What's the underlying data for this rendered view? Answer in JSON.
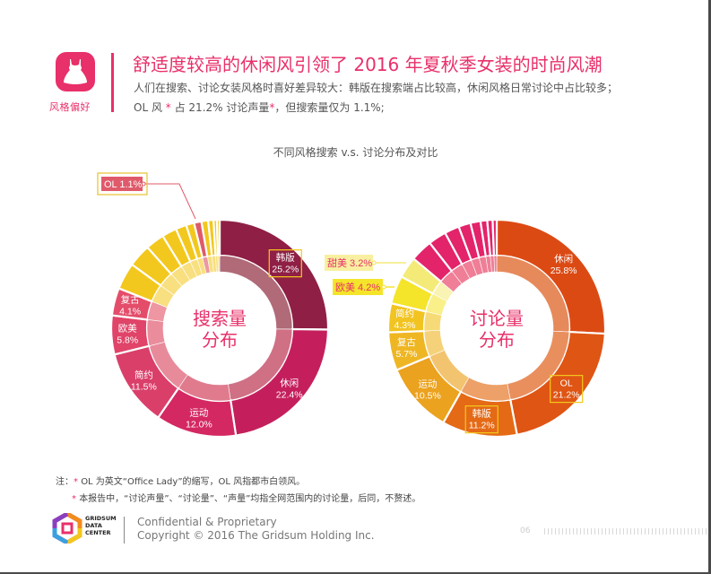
{
  "header": {
    "badge_label": "风格偏好",
    "badge_icon": "dress-icon",
    "title": "舒适度较高的休闲风引领了 2016 年夏秋季女装的时尚风潮",
    "subtitle_line1": "人们在搜索、讨论女装风格时喜好差异较大：韩版在搜索端占比较高，休闲风格日常讨论中占比较多；",
    "subtitle_line2_a": "OL 风",
    "subtitle_line2_b": "占 21.2% 讨论声量",
    "subtitle_line2_c": "，但搜索量仅为 1.1%;",
    "star": "*"
  },
  "chart_data": [
    {
      "type": "pie",
      "title": "不同风格搜索 v.s. 讨论分布及对比",
      "center_label": [
        "搜索量",
        "分布"
      ],
      "unit": "%",
      "slices": [
        {
          "label": "韩版",
          "value": 25.2,
          "color": "#8f1f44",
          "inner": "#b06a78",
          "show_label": true,
          "boxed": true
        },
        {
          "label": "休闲",
          "value": 22.4,
          "color": "#c41f5c",
          "inner": "#d07085",
          "show_label": true
        },
        {
          "label": "运动",
          "value": 12.0,
          "color": "#d42862",
          "inner": "#e07b8e",
          "show_label": true
        },
        {
          "label": "简约",
          "value": 11.5,
          "color": "#da3f6a",
          "inner": "#e78b9b",
          "show_label": true
        },
        {
          "label": "欧美",
          "value": 5.8,
          "color": "#e04468",
          "inner": "#ea8c9c",
          "show_label": true
        },
        {
          "label": "复古",
          "value": 4.1,
          "color": "#e44d6a",
          "inner": "#ee96a2",
          "show_label": true
        },
        {
          "label": "",
          "value": 4.0,
          "color": "#f2c81e",
          "inner": "#f8df80"
        },
        {
          "label": "",
          "value": 3.4,
          "color": "#f2c81e",
          "inner": "#f8df80"
        },
        {
          "label": "",
          "value": 2.8,
          "color": "#f2c81e",
          "inner": "#f8df80"
        },
        {
          "label": "",
          "value": 2.2,
          "color": "#f2c81e",
          "inner": "#f8df80"
        },
        {
          "label": "",
          "value": 1.6,
          "color": "#f2c81e",
          "inner": "#f8df80"
        },
        {
          "label": "",
          "value": 1.2,
          "color": "#f2c81e",
          "inner": "#f8df80"
        },
        {
          "label": "OL",
          "value": 1.1,
          "color": "#df5a6a",
          "inner": "#eb98a2",
          "callout": true
        },
        {
          "label": "",
          "value": 1.0,
          "color": "#f2c81e",
          "inner": "#f8df80"
        },
        {
          "label": "",
          "value": 0.8,
          "color": "#f2c81e",
          "inner": "#f8df80"
        },
        {
          "label": "",
          "value": 0.5,
          "color": "#f2c81e",
          "inner": "#f8df80"
        },
        {
          "label": "",
          "value": 0.4,
          "color": "#f2c81e",
          "inner": "#f8df80"
        }
      ]
    },
    {
      "type": "pie",
      "title": "不同风格搜索 v.s. 讨论分布及对比",
      "center_label": [
        "讨论量",
        "分布"
      ],
      "unit": "%",
      "slices": [
        {
          "label": "休闲",
          "value": 25.8,
          "color": "#dc4a14",
          "inner": "#e68a5c",
          "show_label": true
        },
        {
          "label": "OL",
          "value": 21.2,
          "color": "#df5514",
          "inner": "#e98f5e",
          "show_label": true,
          "boxed": true
        },
        {
          "label": "韩版",
          "value": 11.2,
          "color": "#e46a16",
          "inner": "#eda068",
          "show_label": true,
          "boxed": true
        },
        {
          "label": "运动",
          "value": 10.5,
          "color": "#eba21e",
          "inner": "#f3c470",
          "show_label": true
        },
        {
          "label": "复古",
          "value": 5.7,
          "color": "#efb624",
          "inner": "#f5d27a",
          "show_label": true
        },
        {
          "label": "简约",
          "value": 4.3,
          "color": "#f2c422",
          "inner": "#f7da78",
          "show_label": true
        },
        {
          "label": "欧美",
          "value": 4.2,
          "color": "#f4e42a",
          "inner": "#f9f08a",
          "callout": true
        },
        {
          "label": "甜美",
          "value": 3.2,
          "color": "#f4ea78",
          "inner": "#f9f3b4",
          "callout": true
        },
        {
          "label": "",
          "value": 3.3,
          "color": "#e3236a",
          "inner": "#ef7e96"
        },
        {
          "label": "",
          "value": 2.7,
          "color": "#e3236a",
          "inner": "#ef7e96"
        },
        {
          "label": "",
          "value": 2.2,
          "color": "#e3236a",
          "inner": "#ef7e96"
        },
        {
          "label": "",
          "value": 1.8,
          "color": "#e3236a",
          "inner": "#ef7e96"
        },
        {
          "label": "",
          "value": 1.5,
          "color": "#e3236a",
          "inner": "#ef7e96"
        },
        {
          "label": "",
          "value": 1.0,
          "color": "#e3236a",
          "inner": "#ef7e96"
        },
        {
          "label": "",
          "value": 0.8,
          "color": "#e3236a",
          "inner": "#ef7e96"
        },
        {
          "label": "",
          "value": 0.6,
          "color": "#e3236a",
          "inner": "#ef7e96"
        }
      ]
    }
  ],
  "callouts": {
    "search_ol": "OL 1.1%",
    "disc_tianmei": "甜美 3.2%",
    "disc_oumei": "欧美 4.2%"
  },
  "notes": {
    "prefix": "注：",
    "line1": "OL 为英文“Office Lady”的缩写，OL 风指都市白领风。",
    "line2": "本报告中，“讨论声量”、“讨论量”、“声量”均指全网范围内的讨论量，后同，不赘述。"
  },
  "footer": {
    "logo_lines": [
      "GRIDSUM",
      "DATA",
      "CENTER"
    ],
    "line1": "Confidential & Proprietary",
    "line2": "Copyright © 2016 The Gridsum Holding Inc.",
    "page": "06"
  },
  "colors": {
    "accent": "#e8306a",
    "highlight_box": "#f2c81e"
  }
}
